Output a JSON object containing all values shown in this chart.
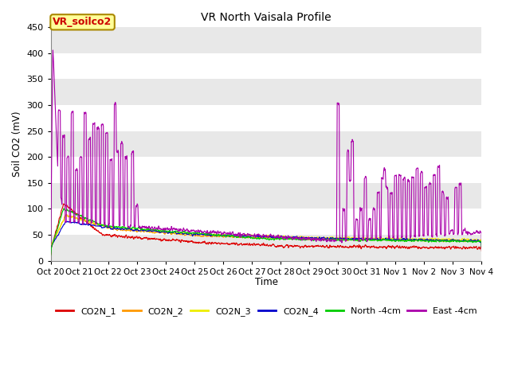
{
  "title": "VR North Vaisala Profile",
  "xlabel": "Time",
  "ylabel": "Soil CO2 (mV)",
  "ylim": [
    0,
    450
  ],
  "annotation_text": "VR_soilco2",
  "annotation_bg": "#ffff99",
  "annotation_edge": "#aa8800",
  "annotation_text_color": "#cc0000",
  "series_colors": {
    "CO2N_1": "#dd0000",
    "CO2N_2": "#ff9900",
    "CO2N_3": "#eeee00",
    "CO2N_4": "#0000cc",
    "North -4cm": "#00cc00",
    "East -4cm": "#aa00aa"
  },
  "fig_facecolor": "#ffffff",
  "plot_facecolor": "#ffffff",
  "band_colors": [
    "#e8e8e8",
    "#ffffff"
  ],
  "grid_linecolor": "#ffffff",
  "x_tick_labels": [
    "Oct 20",
    "Oct 21",
    "Oct 22",
    "Oct 23",
    "Oct 24",
    "Oct 25",
    "Oct 26",
    "Oct 27",
    "Oct 28",
    "Oct 29",
    "Oct 30",
    "Oct 31",
    "Nov 1",
    "Nov 2",
    "Nov 3",
    "Nov 4"
  ],
  "x_tick_positions": [
    0,
    1,
    2,
    3,
    4,
    5,
    6,
    7,
    8,
    9,
    10,
    11,
    12,
    13,
    14,
    15
  ],
  "legend_labels": [
    "CO2N_1",
    "CO2N_2",
    "CO2N_3",
    "CO2N_4",
    "North -4cm",
    "East -4cm"
  ]
}
